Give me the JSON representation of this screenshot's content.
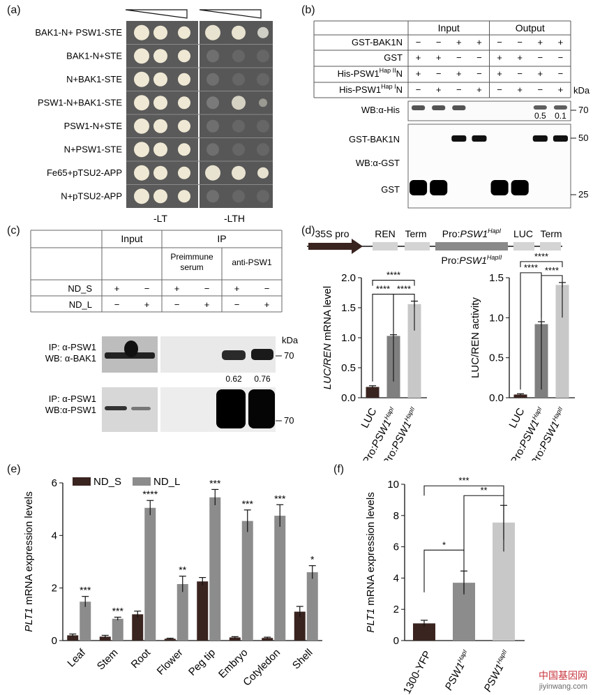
{
  "figure": {
    "watermark": {
      "text": "中国基因网",
      "url": "jiyinwang.com"
    }
  },
  "panel_a": {
    "label": "(a)",
    "rows": [
      "BAK1-N+ PSW1-STE",
      "BAK1-N+STE",
      "N+BAK1-STE",
      "PSW1-N+BAK1-STE",
      "PSW1-N+STE",
      "N+PSW1-STE",
      "Fe65+pTSU2-APP",
      "N+pTSU2-APP"
    ],
    "left_medium": "-LT",
    "right_medium": "-LTH",
    "growth_on_LTH": [
      3,
      0,
      0,
      1,
      0,
      0,
      3,
      0
    ]
  },
  "panel_b": {
    "label": "(b)",
    "header_input": "Input",
    "header_output": "Output",
    "row_labels": [
      "GST-BAK1N",
      "GST",
      "His-PSW1",
      "His-PSW1"
    ],
    "hap_sup": [
      "Hap II",
      "Hap I"
    ],
    "row_suffix": "N",
    "signs": [
      [
        "−",
        "−",
        "+",
        "+",
        "−",
        "−",
        "+",
        "+"
      ],
      [
        "+",
        "+",
        "−",
        "−",
        "+",
        "+",
        "−",
        "−"
      ],
      [
        "+",
        "−",
        "+",
        "−",
        "+",
        "−",
        "+",
        "−"
      ],
      [
        "−",
        "+",
        "−",
        "+",
        "−",
        "+",
        "−",
        "+"
      ]
    ],
    "kda": "kDa",
    "blot_labels": [
      "WB:α-His",
      "GST-BAK1N",
      "WB:α-GST",
      "GST"
    ],
    "markers": [
      "70",
      "50",
      "25"
    ],
    "quant": [
      "0.5",
      "0.1"
    ]
  },
  "panel_c": {
    "label": "(c)",
    "header_input": "Input",
    "header_ip": "IP",
    "sub_preimmune": [
      "Preimmune",
      "serum"
    ],
    "sub_anti": "anti-PSW1",
    "row_labels": [
      "ND_S",
      "ND_L"
    ],
    "signs": [
      [
        "+",
        "−",
        "+",
        "−",
        "+",
        "−"
      ],
      [
        "−",
        "+",
        "−",
        "+",
        "−",
        "+"
      ]
    ],
    "blot1": [
      "IP: α-PSW1",
      "WB: α-BAK1"
    ],
    "blot2": [
      "IP: α-PSW1",
      "WB:α-PSW1"
    ],
    "kda": "kDa",
    "markers": [
      "70",
      "70"
    ],
    "quant": [
      "0.62",
      "0.76"
    ]
  },
  "panel_d": {
    "label": "(d)",
    "construct": {
      "promoter": "35S pro",
      "ren": "REN",
      "term1": "Term",
      "pro_prefix": "Pro:",
      "psw1": "PSW1",
      "hap1": "HapI",
      "luc": "LUC",
      "term2": "Term",
      "hap2": "HapII"
    },
    "sig": "****"
  },
  "panel_e": {
    "label": "(e)"
  },
  "panel_f": {
    "label": "(f)"
  },
  "chart_data": [
    {
      "type": "bar",
      "panel": "d-left",
      "categories": [
        "LUC",
        "Pro:PSW1HapI",
        "Pro:PSW1HapII"
      ],
      "values": [
        0.18,
        1.03,
        1.56
      ],
      "errors": [
        0.02,
        0.02,
        0.05
      ],
      "ylabel_italic": "LUC/REN",
      "ylabel_rest": " mRNA level",
      "ylim": [
        0,
        2.0
      ],
      "yticks": [
        "0.0",
        "0.5",
        "1.0",
        "1.5",
        "2.0"
      ],
      "colors": [
        "#3a2420",
        "#7f7f7f",
        "#c8c8c8"
      ]
    },
    {
      "type": "bar",
      "panel": "d-right",
      "categories": [
        "LUC",
        "Pro:PSW1HapI",
        "Pro:PSW1HapII"
      ],
      "values": [
        0.04,
        0.92,
        1.41
      ],
      "errors": [
        0.01,
        0.03,
        0.03
      ],
      "ylabel": "LUC/REN activity",
      "ylim": [
        0,
        1.5
      ],
      "yticks": [
        "0.0",
        "0.5",
        "1.0",
        "1.5"
      ],
      "colors": [
        "#3a2420",
        "#7f7f7f",
        "#c8c8c8"
      ]
    },
    {
      "type": "bar",
      "panel": "e",
      "categories": [
        "Leaf",
        "Stem",
        "Root",
        "Flower",
        "Peg tip",
        "Embryo",
        "Cotyledon",
        "Shell"
      ],
      "series": [
        {
          "name": "ND_S",
          "values": [
            0.2,
            0.15,
            1.0,
            0.07,
            2.25,
            0.12,
            0.1,
            1.1
          ],
          "errors": [
            0.05,
            0.05,
            0.12,
            0.02,
            0.15,
            0.03,
            0.03,
            0.2
          ],
          "color": "#3a2420"
        },
        {
          "name": "ND_L",
          "values": [
            1.48,
            0.83,
            5.05,
            2.15,
            5.45,
            4.55,
            4.75,
            2.6
          ],
          "errors": [
            0.2,
            0.06,
            0.28,
            0.3,
            0.3,
            0.42,
            0.42,
            0.25
          ],
          "color": "#8c8c8c"
        }
      ],
      "sig": [
        "***",
        "***",
        "****",
        "**",
        "***",
        "***",
        "***",
        "*"
      ],
      "ylabel_italic": "PLT1",
      "ylabel_rest": " mRNA expression levels",
      "ylim": [
        0,
        6
      ],
      "yticks": [
        "0",
        "2",
        "4",
        "6"
      ]
    },
    {
      "type": "bar",
      "panel": "f",
      "categories": [
        "1300-YFP",
        "PSW1HapI",
        "PSW1HapII"
      ],
      "values": [
        1.1,
        3.7,
        7.55
      ],
      "errors": [
        0.2,
        0.75,
        1.1
      ],
      "sig": [
        "*",
        "**",
        "***"
      ],
      "ylabel_italic": "PLT1",
      "ylabel_rest": " mRNA expression levels",
      "ylim": [
        0,
        10
      ],
      "yticks": [
        "0",
        "2",
        "4",
        "6",
        "8",
        "10"
      ],
      "colors": [
        "#3a2420",
        "#8c8c8c",
        "#c8c8c8"
      ]
    }
  ]
}
